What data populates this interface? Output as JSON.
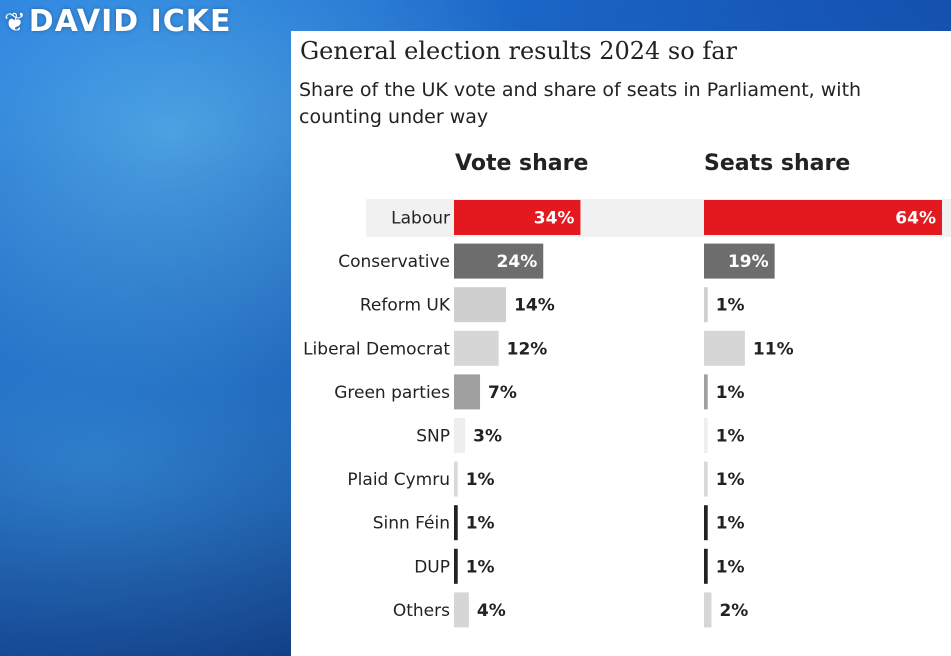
{
  "branding": {
    "logo_text": "DAVID ICKE",
    "logo_mark": "❦"
  },
  "chart_data": {
    "type": "bar",
    "title": "General election results 2024 so far",
    "subtitle": "Share of the UK vote and share of seats in Parliament, with counting under way",
    "categories": [
      "Labour",
      "Conservative",
      "Reform UK",
      "Liberal Democrat",
      "Green parties",
      "SNP",
      "Plaid Cymru",
      "Sinn Féin",
      "DUP",
      "Others"
    ],
    "series": [
      {
        "name": "Vote share",
        "values": [
          34,
          24,
          14,
          12,
          7,
          3,
          1,
          1,
          1,
          4
        ]
      },
      {
        "name": "Seats share",
        "values": [
          64,
          19,
          1,
          11,
          1,
          1,
          1,
          1,
          1,
          2
        ]
      }
    ],
    "value_suffix": "%",
    "highlighted_category": "Labour",
    "colors": [
      "#e4191f",
      "#6d6d6d",
      "#cfcfcf",
      "#d6d6d6",
      "#a0a0a0",
      "#eeeeee",
      "#d9d9d9",
      "#222222",
      "#222222",
      "#d6d6d6"
    ],
    "label_colors": {
      "inside": "#ffffff",
      "outside": "#222222"
    },
    "xlim": [
      0,
      64
    ]
  }
}
